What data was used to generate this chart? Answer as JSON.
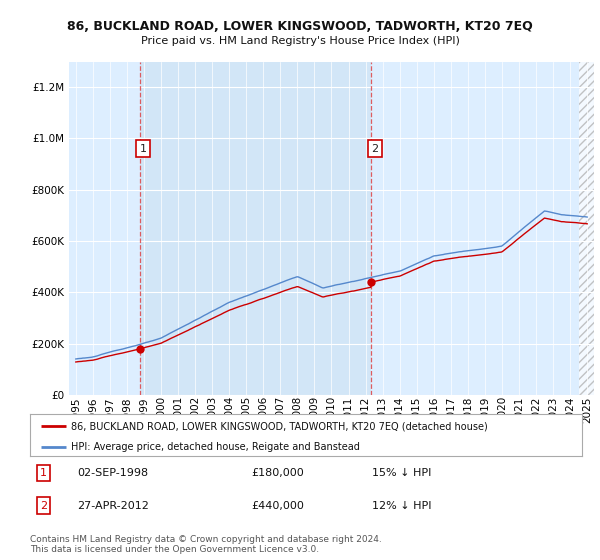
{
  "title": "86, BUCKLAND ROAD, LOWER KINGSWOOD, TADWORTH, KT20 7EQ",
  "subtitle": "Price paid vs. HM Land Registry's House Price Index (HPI)",
  "legend_line1": "86, BUCKLAND ROAD, LOWER KINGSWOOD, TADWORTH, KT20 7EQ (detached house)",
  "legend_line2": "HPI: Average price, detached house, Reigate and Banstead",
  "annotation1_date": "02-SEP-1998",
  "annotation1_price": "£180,000",
  "annotation1_hpi": "15% ↓ HPI",
  "annotation2_date": "27-APR-2012",
  "annotation2_price": "£440,000",
  "annotation2_hpi": "12% ↓ HPI",
  "footer": "Contains HM Land Registry data © Crown copyright and database right 2024.\nThis data is licensed under the Open Government Licence v3.0.",
  "hpi_color": "#5588cc",
  "price_color": "#cc0000",
  "vline_color": "#dd4444",
  "box_border_color": "#cc0000",
  "ylim": [
    0,
    1300000
  ],
  "yticks": [
    0,
    200000,
    400000,
    600000,
    800000,
    1000000,
    1200000
  ],
  "sale1_year": 1998.75,
  "sale1_price": 180000,
  "sale2_year": 2012.33,
  "sale2_price": 440000,
  "xstart": 1995,
  "xend": 2025,
  "background_color": "#ffffff",
  "plot_bg_color": "#ddeeff",
  "shade_between_sales": "#d0e4f7",
  "grid_color": "#ffffff"
}
